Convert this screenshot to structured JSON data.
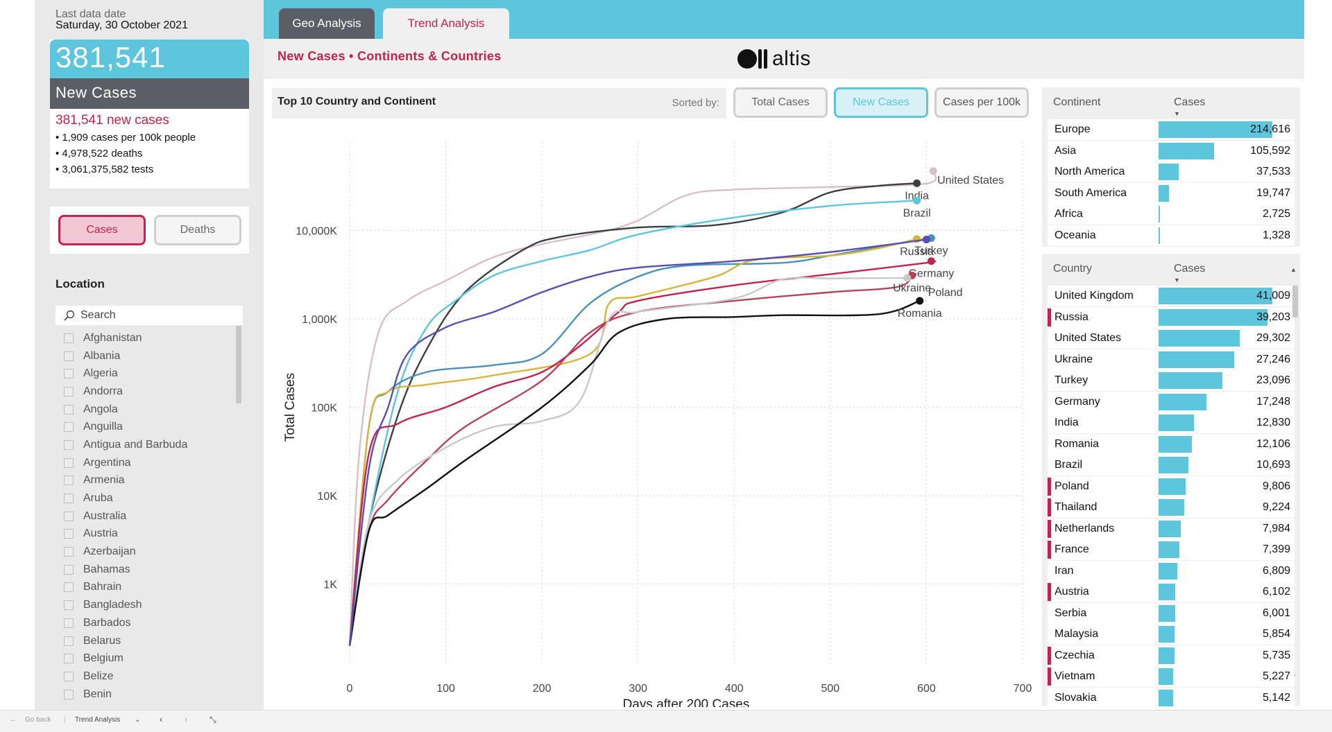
{
  "left": {
    "last_date_label": "Last data date",
    "last_date_value": "Saturday, 30 October 2021",
    "kpi_value": "381,541",
    "kpi_label": "New Cases",
    "kpi_subtitle": "381,541 new cases",
    "kpi_bullets": [
      "• 1,909 cases per 100k people",
      "• 4,978,522 deaths",
      "• 3,061,375,582 tests"
    ],
    "toggle_cases": "Cases",
    "toggle_deaths": "Deaths",
    "location_title": "Location",
    "search_placeholder": "Search",
    "locations": [
      "Afghanistan",
      "Albania",
      "Algeria",
      "Andorra",
      "Angola",
      "Anguilla",
      "Antigua and Barbuda",
      "Argentina",
      "Armenia",
      "Aruba",
      "Australia",
      "Austria",
      "Azerbaijan",
      "Bahamas",
      "Bahrain",
      "Bangladesh",
      "Barbados",
      "Belarus",
      "Belgium",
      "Belize",
      "Benin"
    ]
  },
  "tabs": {
    "geo": "Geo Analysis",
    "trend": "Trend Analysis"
  },
  "header": {
    "subtitle": "New Cases • Continents & Countries",
    "logo_text": "altis"
  },
  "chart_header": {
    "title": "Top 10 Country and Continent",
    "sorted_by": "Sorted by:",
    "buttons": [
      "Total Cases",
      "New Cases",
      "Cases per 100k"
    ]
  },
  "continent_table": {
    "col1": "Continent",
    "col2": "Cases",
    "rows": [
      {
        "name": "Europe",
        "value": "214,616",
        "frac": 1.0
      },
      {
        "name": "Asia",
        "value": "105,592",
        "frac": 0.49
      },
      {
        "name": "North America",
        "value": "37,533",
        "frac": 0.175
      },
      {
        "name": "South America",
        "value": "19,747",
        "frac": 0.092
      },
      {
        "name": "Africa",
        "value": "2,725",
        "frac": 0.013
      },
      {
        "name": "Oceania",
        "value": "1,328",
        "frac": 0.006
      }
    ]
  },
  "country_table": {
    "col1": "Country",
    "col2": "Cases",
    "rows": [
      {
        "name": "United Kingdom",
        "value": "41,009",
        "frac": 1.0,
        "mark": false
      },
      {
        "name": "Russia",
        "value": "39,203",
        "frac": 0.956,
        "mark": true
      },
      {
        "name": "United States",
        "value": "29,302",
        "frac": 0.715,
        "mark": false
      },
      {
        "name": "Ukraine",
        "value": "27,246",
        "frac": 0.664,
        "mark": false
      },
      {
        "name": "Turkey",
        "value": "23,096",
        "frac": 0.563,
        "mark": false
      },
      {
        "name": "Germany",
        "value": "17,248",
        "frac": 0.421,
        "mark": false
      },
      {
        "name": "India",
        "value": "12,830",
        "frac": 0.313,
        "mark": false
      },
      {
        "name": "Romania",
        "value": "12,106",
        "frac": 0.295,
        "mark": false
      },
      {
        "name": "Brazil",
        "value": "10,693",
        "frac": 0.261,
        "mark": false
      },
      {
        "name": "Poland",
        "value": "9,806",
        "frac": 0.239,
        "mark": true
      },
      {
        "name": "Thailand",
        "value": "9,224",
        "frac": 0.225,
        "mark": true
      },
      {
        "name": "Netherlands",
        "value": "7,984",
        "frac": 0.195,
        "mark": true
      },
      {
        "name": "France",
        "value": "7,399",
        "frac": 0.18,
        "mark": true
      },
      {
        "name": "Iran",
        "value": "6,809",
        "frac": 0.166,
        "mark": false
      },
      {
        "name": "Austria",
        "value": "6,102",
        "frac": 0.149,
        "mark": true
      },
      {
        "name": "Serbia",
        "value": "6,001",
        "frac": 0.146,
        "mark": false
      },
      {
        "name": "Malaysia",
        "value": "5,854",
        "frac": 0.143,
        "mark": false
      },
      {
        "name": "Czechia",
        "value": "5,735",
        "frac": 0.14,
        "mark": true
      },
      {
        "name": "Vietnam",
        "value": "5,227",
        "frac": 0.127,
        "mark": true
      },
      {
        "name": "Slovakia",
        "value": "5,142",
        "frac": 0.125,
        "mark": false
      }
    ]
  },
  "chart_data": {
    "type": "line",
    "xlabel": "Days after 200 Cases",
    "ylabel": "Total Cases",
    "y_scale": "log",
    "xlim": [
      0,
      700
    ],
    "ylim": [
      100,
      100000000
    ],
    "x_ticks": [
      0,
      100,
      200,
      300,
      400,
      500,
      600,
      700
    ],
    "y_ticks": [
      {
        "v": 1000,
        "label": "1K"
      },
      {
        "v": 10000,
        "label": "10K"
      },
      {
        "v": 100000,
        "label": "100K"
      },
      {
        "v": 1000000,
        "label": "1,000K"
      },
      {
        "v": 10000000,
        "label": "10,000K"
      }
    ],
    "grid": true,
    "series": [
      {
        "name": "United States",
        "color": "#d8bfc6",
        "label_pos": "right",
        "points": [
          [
            0,
            200
          ],
          [
            10,
            30000
          ],
          [
            30,
            700000
          ],
          [
            60,
            1600000
          ],
          [
            100,
            2700000
          ],
          [
            150,
            5000000
          ],
          [
            200,
            7000000
          ],
          [
            260,
            9500000
          ],
          [
            300,
            13000000
          ],
          [
            350,
            25000000
          ],
          [
            400,
            29000000
          ],
          [
            500,
            31000000
          ],
          [
            600,
            34000000
          ],
          [
            607,
            47000000
          ]
        ]
      },
      {
        "name": "India",
        "color": "#3a3f45",
        "label_pos": "below",
        "points": [
          [
            0,
            200
          ],
          [
            20,
            5000
          ],
          [
            50,
            80000
          ],
          [
            80,
            450000
          ],
          [
            120,
            2000000
          ],
          [
            180,
            6000000
          ],
          [
            220,
            8500000
          ],
          [
            300,
            10800000
          ],
          [
            380,
            11500000
          ],
          [
            450,
            16000000
          ],
          [
            500,
            27000000
          ],
          [
            550,
            32000000
          ],
          [
            590,
            34200000
          ]
        ]
      },
      {
        "name": "Brazil",
        "color": "#5ec6dc",
        "label_pos": "below",
        "points": [
          [
            0,
            200
          ],
          [
            20,
            5000
          ],
          [
            50,
            150000
          ],
          [
            80,
            800000
          ],
          [
            110,
            1600000
          ],
          [
            150,
            3100000
          ],
          [
            200,
            4500000
          ],
          [
            250,
            6000000
          ],
          [
            300,
            9000000
          ],
          [
            400,
            14000000
          ],
          [
            500,
            19000000
          ],
          [
            590,
            21800000
          ]
        ]
      },
      {
        "name": "Turkey",
        "color": "#4a90b8",
        "label_pos": "below",
        "points": [
          [
            0,
            200
          ],
          [
            20,
            60000
          ],
          [
            40,
            150000
          ],
          [
            80,
            250000
          ],
          [
            150,
            300000
          ],
          [
            200,
            400000
          ],
          [
            250,
            1500000
          ],
          [
            300,
            3000000
          ],
          [
            350,
            4000000
          ],
          [
            450,
            4300000
          ],
          [
            500,
            5200000
          ],
          [
            550,
            6500000
          ],
          [
            605,
            8200000
          ]
        ]
      },
      {
        "name": "Russia",
        "color": "#d9b43a",
        "label_pos": "below",
        "points": [
          [
            0,
            200
          ],
          [
            20,
            60000
          ],
          [
            40,
            150000
          ],
          [
            80,
            180000
          ],
          [
            150,
            230000
          ],
          [
            250,
            400000
          ],
          [
            270,
            1500000
          ],
          [
            300,
            1800000
          ],
          [
            380,
            3000000
          ],
          [
            420,
            4600000
          ],
          [
            500,
            5200000
          ],
          [
            550,
            6300000
          ],
          [
            590,
            8000000
          ]
        ]
      },
      {
        "name": "Germany",
        "color": "#c4234f",
        "label_pos": "below",
        "points": [
          [
            0,
            200
          ],
          [
            20,
            30000
          ],
          [
            50,
            65000
          ],
          [
            100,
            100000
          ],
          [
            150,
            170000
          ],
          [
            200,
            250000
          ],
          [
            240,
            500000
          ],
          [
            280,
            1200000
          ],
          [
            300,
            1600000
          ],
          [
            400,
            2400000
          ],
          [
            500,
            3200000
          ],
          [
            600,
            4300000
          ],
          [
            605,
            4500000
          ]
        ]
      },
      {
        "name": "Ukraine",
        "color": "#b5435a",
        "label_pos": "below",
        "points": [
          [
            0,
            200
          ],
          [
            20,
            4000
          ],
          [
            40,
            9000
          ],
          [
            80,
            25000
          ],
          [
            120,
            60000
          ],
          [
            200,
            200000
          ],
          [
            250,
            700000
          ],
          [
            300,
            1200000
          ],
          [
            400,
            1600000
          ],
          [
            500,
            2000000
          ],
          [
            570,
            2300000
          ],
          [
            585,
            3100000
          ]
        ]
      },
      {
        "name": "Poland",
        "color": "#c9c9c9",
        "label_pos": "below-right",
        "points": [
          [
            0,
            200
          ],
          [
            20,
            5000
          ],
          [
            50,
            15000
          ],
          [
            100,
            35000
          ],
          [
            150,
            60000
          ],
          [
            200,
            70000
          ],
          [
            240,
            120000
          ],
          [
            270,
            1000000
          ],
          [
            300,
            1200000
          ],
          [
            400,
            1700000
          ],
          [
            450,
            2800000
          ],
          [
            500,
            2870000
          ],
          [
            580,
            2900000
          ]
        ]
      },
      {
        "name": "Romania",
        "color": "#111111",
        "label_pos": "below",
        "points": [
          [
            0,
            200
          ],
          [
            20,
            4000
          ],
          [
            40,
            6000
          ],
          [
            80,
            12000
          ],
          [
            120,
            25000
          ],
          [
            200,
            100000
          ],
          [
            250,
            300000
          ],
          [
            280,
            700000
          ],
          [
            330,
            1000000
          ],
          [
            400,
            1050000
          ],
          [
            450,
            1100000
          ],
          [
            550,
            1130000
          ],
          [
            593,
            1600000
          ]
        ]
      },
      {
        "name": "",
        "color": "#5a4fb0",
        "label_pos": "none",
        "points": [
          [
            0,
            200
          ],
          [
            20,
            20000
          ],
          [
            40,
            100000
          ],
          [
            60,
            400000
          ],
          [
            100,
            800000
          ],
          [
            150,
            1200000
          ],
          [
            200,
            2000000
          ],
          [
            250,
            3000000
          ],
          [
            300,
            3800000
          ],
          [
            400,
            4500000
          ],
          [
            500,
            5700000
          ],
          [
            600,
            7900000
          ]
        ]
      }
    ]
  },
  "statusbar": {
    "go_back": "Go back",
    "page": "Trend Analysis"
  }
}
